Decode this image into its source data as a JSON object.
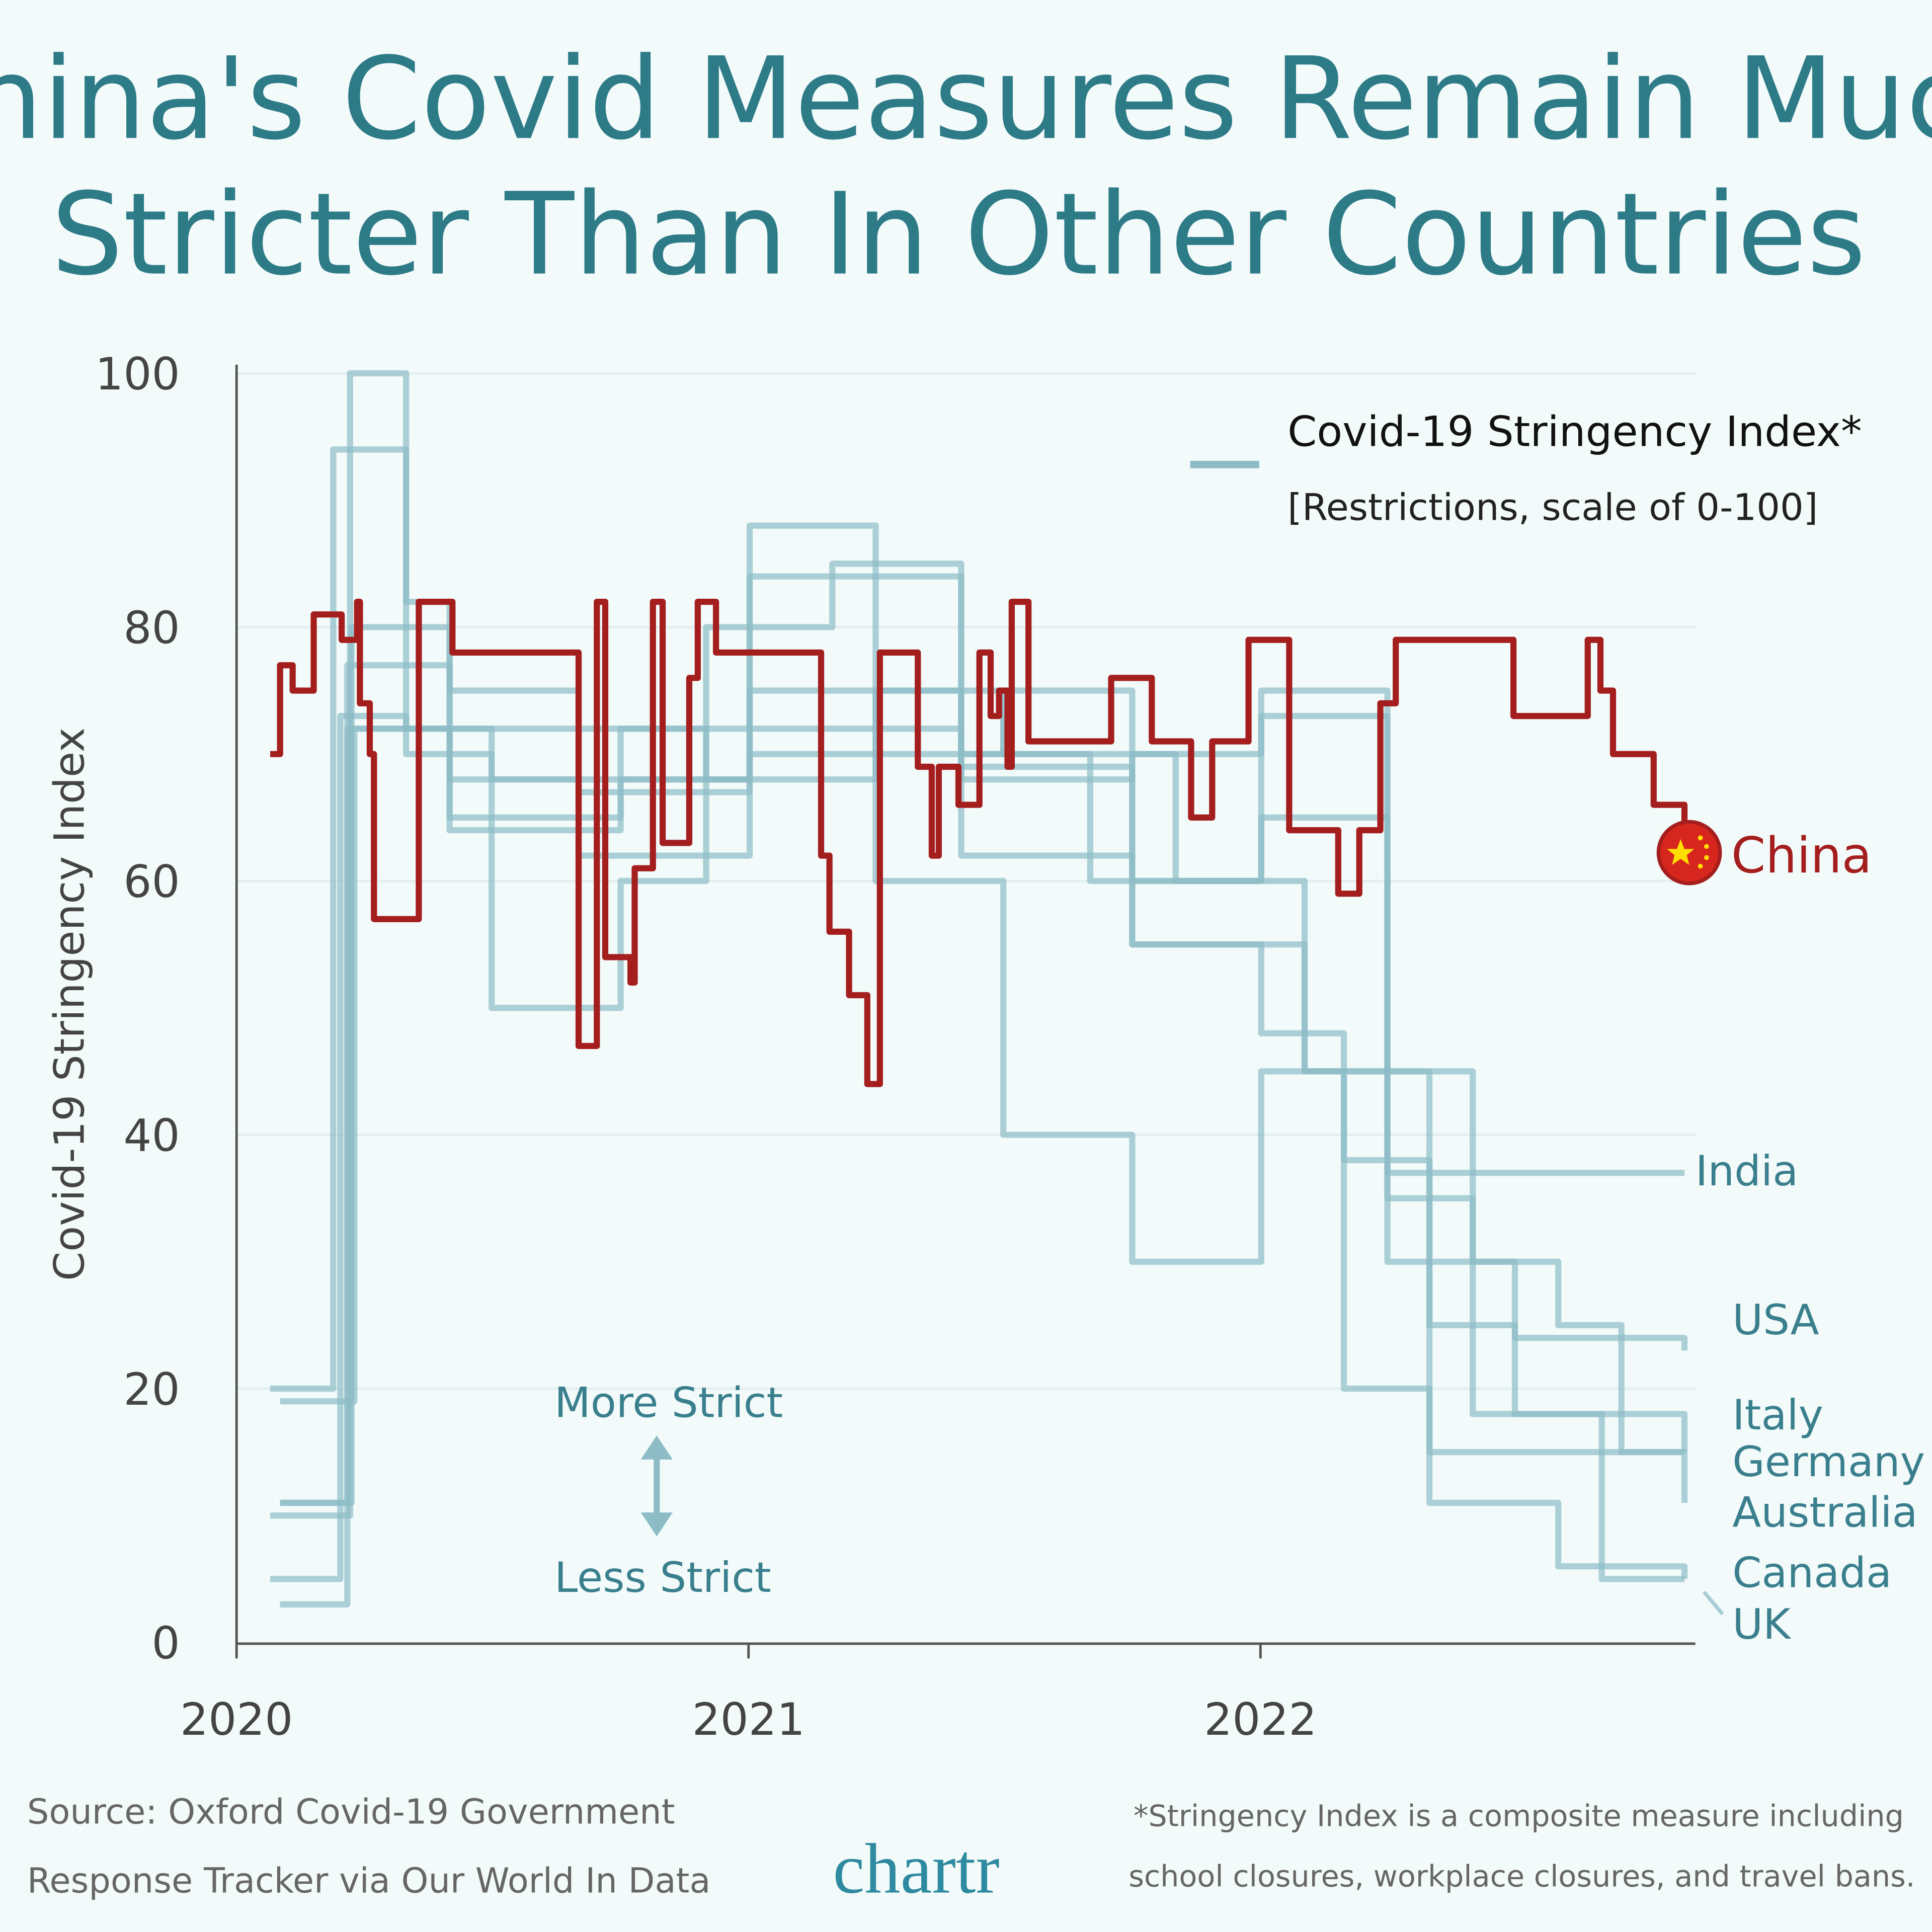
{
  "chart_data": {
    "type": "line",
    "title": "China's Covid Measures Remain Much Stricter Than In Other Countries",
    "title_lines": [
      "China's Covid Measures Remain Much",
      "Stricter Than In Other Countries"
    ],
    "ylabel": "Covid-19 Stringency Index",
    "xlabel": "",
    "ylim": [
      0,
      100
    ],
    "yticks": [
      "0",
      "20",
      "40",
      "60",
      "80",
      "100"
    ],
    "xticks": [
      "2020",
      "2021",
      "2022"
    ],
    "grid": true,
    "legend": {
      "title": "Covid-19 Stringency Index*",
      "subtitle": "[Restrictions, scale of 0-100]",
      "placement": "top-right"
    },
    "annotations": {
      "more": "More Strict",
      "less": "Less Strict"
    },
    "colors": {
      "china": "#a51e1e",
      "others": "#8dbcc6",
      "text": "#3a7f8d",
      "background": "#f2fafa"
    },
    "series": [
      {
        "name": "China",
        "highlight": true,
        "points": [
          [
            "2020-01-25",
            70
          ],
          [
            "2020-02-01",
            77
          ],
          [
            "2020-02-10",
            75
          ],
          [
            "2020-02-25",
            81
          ],
          [
            "2020-03-16",
            79
          ],
          [
            "2020-03-27",
            82
          ],
          [
            "2020-03-29",
            74
          ],
          [
            "2020-04-05",
            70
          ],
          [
            "2020-04-08",
            57
          ],
          [
            "2020-05-10",
            82
          ],
          [
            "2020-06-03",
            78
          ],
          [
            "2020-09-01",
            47
          ],
          [
            "2020-09-14",
            82
          ],
          [
            "2020-09-20",
            54
          ],
          [
            "2020-10-08",
            52
          ],
          [
            "2020-10-11",
            61
          ],
          [
            "2020-10-24",
            82
          ],
          [
            "2020-10-31",
            63
          ],
          [
            "2020-11-19",
            76
          ],
          [
            "2020-11-25",
            82
          ],
          [
            "2020-12-08",
            78
          ],
          [
            "2021-02-21",
            62
          ],
          [
            "2021-02-27",
            56
          ],
          [
            "2021-03-13",
            51
          ],
          [
            "2021-03-26",
            44
          ],
          [
            "2021-04-04",
            78
          ],
          [
            "2021-05-01",
            69
          ],
          [
            "2021-05-11",
            62
          ],
          [
            "2021-05-16",
            69
          ],
          [
            "2021-05-30",
            66
          ],
          [
            "2021-06-14",
            78
          ],
          [
            "2021-06-22",
            73
          ],
          [
            "2021-06-28",
            75
          ],
          [
            "2021-07-04",
            69
          ],
          [
            "2021-07-07",
            82
          ],
          [
            "2021-07-19",
            71
          ],
          [
            "2021-09-16",
            76
          ],
          [
            "2021-10-15",
            71
          ],
          [
            "2021-11-12",
            65
          ],
          [
            "2021-11-27",
            71
          ],
          [
            "2021-12-23",
            79
          ],
          [
            "2022-01-21",
            64
          ],
          [
            "2022-02-25",
            59
          ],
          [
            "2022-03-12",
            64
          ],
          [
            "2022-03-27",
            74
          ],
          [
            "2022-04-07",
            79
          ],
          [
            "2022-06-30",
            73
          ],
          [
            "2022-08-22",
            79
          ],
          [
            "2022-08-31",
            75
          ],
          [
            "2022-09-09",
            70
          ],
          [
            "2022-10-08",
            66
          ],
          [
            "2022-10-30",
            64
          ]
        ]
      },
      {
        "name": "India",
        "points": [
          [
            "2020-01-25",
            10
          ],
          [
            "2020-03-22",
            100
          ],
          [
            "2020-05-01",
            82
          ],
          [
            "2020-06-01",
            75
          ],
          [
            "2020-09-01",
            72
          ],
          [
            "2020-12-01",
            68
          ],
          [
            "2021-04-01",
            75
          ],
          [
            "2021-07-01",
            70
          ],
          [
            "2021-11-01",
            60
          ],
          [
            "2022-02-01",
            45
          ],
          [
            "2022-04-01",
            37
          ],
          [
            "2022-10-30",
            37
          ]
        ]
      },
      {
        "name": "USA",
        "points": [
          [
            "2020-01-25",
            5
          ],
          [
            "2020-03-15",
            73
          ],
          [
            "2020-05-01",
            72
          ],
          [
            "2020-09-01",
            67
          ],
          [
            "2021-01-01",
            72
          ],
          [
            "2021-06-01",
            62
          ],
          [
            "2021-10-01",
            55
          ],
          [
            "2022-01-01",
            48
          ],
          [
            "2022-03-01",
            38
          ],
          [
            "2022-05-01",
            25
          ],
          [
            "2022-07-01",
            24
          ],
          [
            "2022-10-30",
            23
          ]
        ]
      },
      {
        "name": "Italy",
        "points": [
          [
            "2020-01-25",
            20
          ],
          [
            "2020-03-10",
            94
          ],
          [
            "2020-05-01",
            70
          ],
          [
            "2020-07-01",
            50
          ],
          [
            "2020-10-01",
            60
          ],
          [
            "2020-12-01",
            80
          ],
          [
            "2021-03-01",
            85
          ],
          [
            "2021-06-01",
            68
          ],
          [
            "2021-10-01",
            70
          ],
          [
            "2022-01-01",
            75
          ],
          [
            "2022-04-01",
            45
          ],
          [
            "2022-06-01",
            30
          ],
          [
            "2022-08-01",
            25
          ],
          [
            "2022-09-15",
            15
          ],
          [
            "2022-10-30",
            15
          ]
        ]
      },
      {
        "name": "Germany",
        "points": [
          [
            "2020-02-01",
            11
          ],
          [
            "2020-03-20",
            77
          ],
          [
            "2020-06-01",
            64
          ],
          [
            "2020-10-01",
            72
          ],
          [
            "2021-01-01",
            84
          ],
          [
            "2021-06-01",
            70
          ],
          [
            "2021-09-01",
            60
          ],
          [
            "2022-01-01",
            73
          ],
          [
            "2022-04-01",
            35
          ],
          [
            "2022-06-01",
            18
          ],
          [
            "2022-10-30",
            15
          ]
        ]
      },
      {
        "name": "Australia",
        "points": [
          [
            "2020-02-01",
            19
          ],
          [
            "2020-03-25",
            72
          ],
          [
            "2020-06-01",
            68
          ],
          [
            "2020-09-01",
            62
          ],
          [
            "2021-01-01",
            70
          ],
          [
            "2021-07-01",
            75
          ],
          [
            "2021-10-01",
            55
          ],
          [
            "2022-02-01",
            45
          ],
          [
            "2022-05-01",
            15
          ],
          [
            "2022-10-30",
            11
          ]
        ]
      },
      {
        "name": "Canada",
        "points": [
          [
            "2020-02-01",
            3
          ],
          [
            "2020-03-20",
            72
          ],
          [
            "2020-07-01",
            68
          ],
          [
            "2021-01-01",
            75
          ],
          [
            "2021-06-01",
            69
          ],
          [
            "2021-10-01",
            60
          ],
          [
            "2022-01-01",
            65
          ],
          [
            "2022-04-01",
            30
          ],
          [
            "2022-07-01",
            18
          ],
          [
            "2022-09-01",
            5
          ],
          [
            "2022-10-30",
            5
          ]
        ]
      },
      {
        "name": "UK",
        "points": [
          [
            "2020-02-01",
            11
          ],
          [
            "2020-03-23",
            80
          ],
          [
            "2020-06-01",
            65
          ],
          [
            "2020-10-01",
            68
          ],
          [
            "2021-01-01",
            88
          ],
          [
            "2021-04-01",
            60
          ],
          [
            "2021-07-01",
            40
          ],
          [
            "2021-10-01",
            30
          ],
          [
            "2022-01-01",
            45
          ],
          [
            "2022-03-01",
            20
          ],
          [
            "2022-05-01",
            11
          ],
          [
            "2022-08-01",
            6
          ],
          [
            "2022-10-30",
            5
          ]
        ]
      }
    ]
  },
  "footer": {
    "source_line1": "Source: Oxford Covid-19 Government",
    "source_line2": "Response Tracker via Our World In Data",
    "logo": "chartr",
    "note_line1": "*Stringency Index is a composite measure including",
    "note_line2": "school closures, workplace closures, and travel bans."
  }
}
